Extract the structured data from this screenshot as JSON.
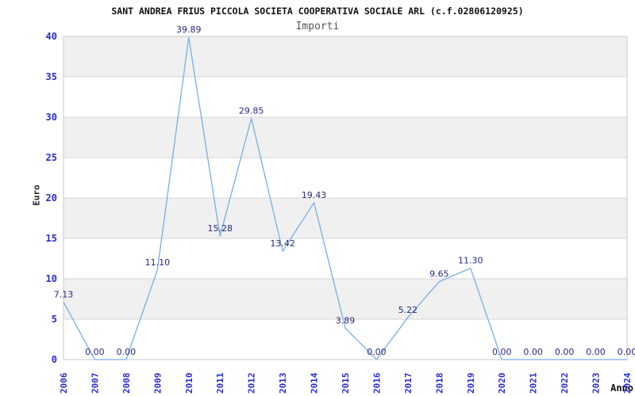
{
  "header": {
    "title": "SANT ANDREA FRIUS PICCOLA SOCIETA COOPERATIVA SOCIALE ARL (c.f.02806120925)",
    "subtitle": "Importi"
  },
  "chart_data": {
    "type": "line",
    "title": "SANT ANDREA FRIUS PICCOLA SOCIETA COOPERATIVA SOCIALE ARL (c.f.02806120925)",
    "subtitle": "Importi",
    "xlabel": "Anno",
    "ylabel": "Euro",
    "categories": [
      "2006",
      "2007",
      "2008",
      "2009",
      "2010",
      "2011",
      "2012",
      "2013",
      "2014",
      "2015",
      "2016",
      "2017",
      "2018",
      "2019",
      "2020",
      "2021",
      "2022",
      "2023",
      "2024"
    ],
    "values": [
      7.13,
      0.0,
      0.0,
      11.1,
      39.89,
      15.28,
      29.85,
      13.42,
      19.43,
      3.89,
      0.0,
      5.22,
      9.65,
      11.3,
      0.0,
      0.0,
      0.0,
      0.0,
      0.0
    ],
    "value_label_decimals": 2,
    "ylim": [
      0,
      40
    ],
    "ytick_step": 5,
    "yticks": [
      0,
      5,
      10,
      15,
      20,
      25,
      30,
      35,
      40
    ],
    "grid": true,
    "alternating_bands": true,
    "legend_position": "none"
  },
  "colors": {
    "line": "#78afe6",
    "tick_label": "#2b2bd0",
    "data_label": "#28287f",
    "band_fill": "#f0f0f0",
    "gridline": "#d6d6d6",
    "plot_border": "#c9c9c9",
    "title": "#111111",
    "subtitle": "#555555",
    "axis_title": "#222222",
    "background": "#ffffff"
  }
}
